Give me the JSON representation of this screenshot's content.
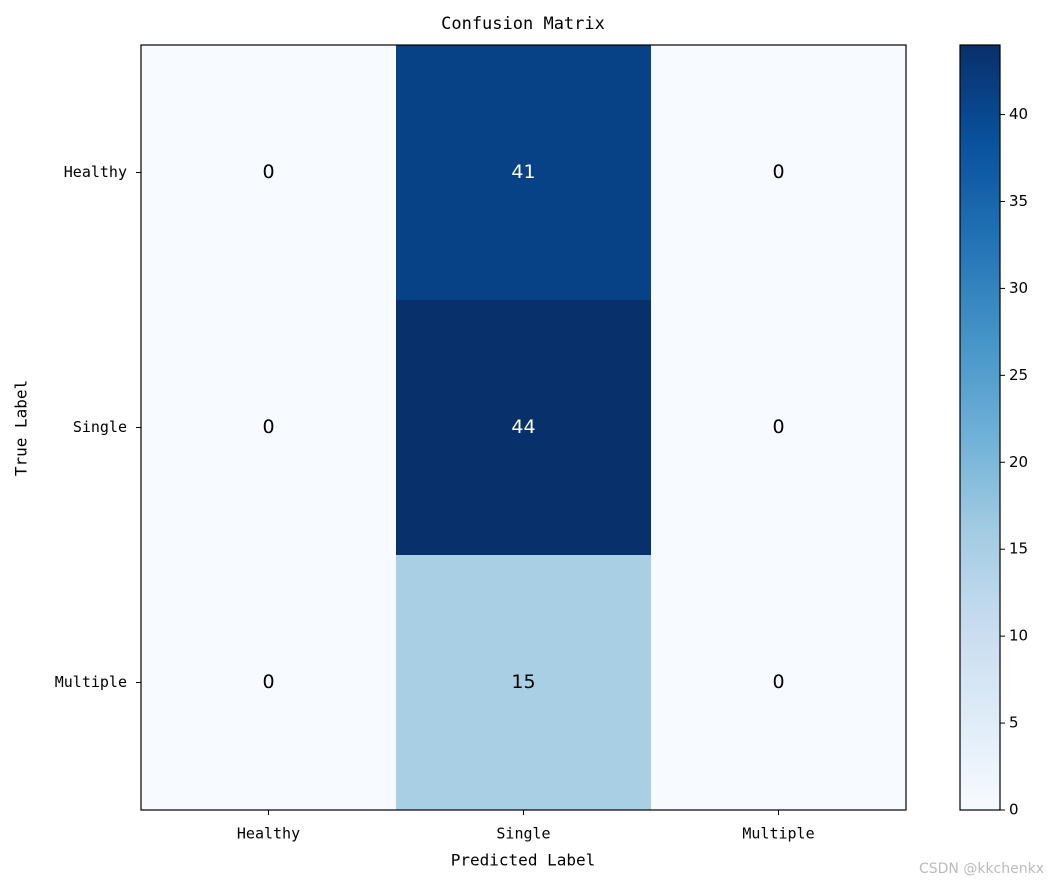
{
  "chart_data": {
    "type": "heatmap",
    "title": "Confusion Matrix",
    "x_label": "Predicted Label",
    "y_label": "True Label",
    "x_categories": [
      "Healthy",
      "Single",
      "Multiple"
    ],
    "y_categories": [
      "Healthy",
      "Single",
      "Multiple"
    ],
    "values": [
      [
        0,
        41,
        0
      ],
      [
        0,
        44,
        0
      ],
      [
        0,
        15,
        0
      ]
    ],
    "colormap": "Blues",
    "zlim": [
      0,
      44
    ],
    "zticks": [
      0,
      5,
      10,
      15,
      20,
      25,
      30,
      35,
      40
    ]
  },
  "watermark": "CSDN @kkchenkx"
}
